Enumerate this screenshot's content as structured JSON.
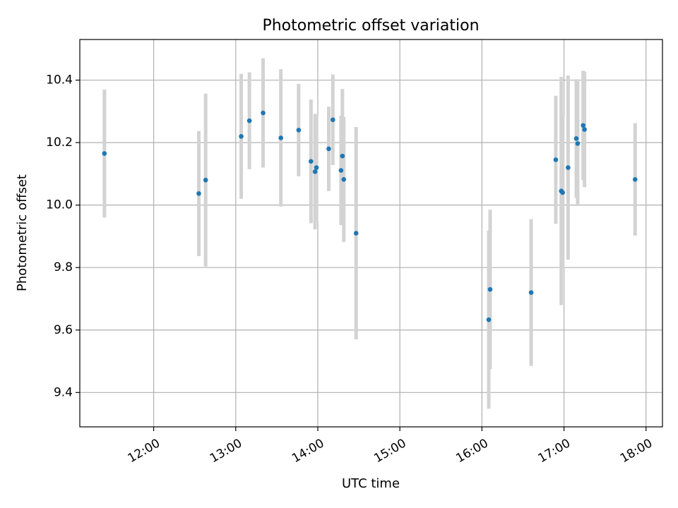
{
  "chart_data": {
    "type": "scatter",
    "title": "Photometric offset variation",
    "xlabel": "UTC time",
    "ylabel": "Photometric offset",
    "x_tick_labels": [
      "12:00",
      "13:00",
      "14:00",
      "15:00",
      "16:00",
      "17:00",
      "18:00"
    ],
    "x_tick_values": [
      "12:00",
      "13:00",
      "14:00",
      "15:00",
      "16:00",
      "17:00",
      "18:00"
    ],
    "xlim": [
      "11:06",
      "18:12"
    ],
    "y_tick_labels": [
      "9.4",
      "9.6",
      "9.8",
      "10.0",
      "10.2",
      "10.4"
    ],
    "y_tick_values": [
      9.4,
      9.6,
      9.8,
      10.0,
      10.2,
      10.4
    ],
    "ylim": [
      9.29,
      10.53
    ],
    "grid": true,
    "point_color": "#1f77b4",
    "errorbar_color": "#d3d3d3",
    "series": [
      {
        "x": [
          "11:24",
          "12:33",
          "12:38",
          "13:04",
          "13:10",
          "13:20",
          "13:33",
          "13:46",
          "13:55",
          "13:58",
          "13:59",
          "14:08",
          "14:11",
          "14:17",
          "14:18",
          "14:19",
          "14:28",
          "16:05",
          "16:06",
          "16:36",
          "16:54",
          "16:58",
          "16:59",
          "17:03",
          "17:09",
          "17:10",
          "17:14",
          "17:15",
          "17:52"
        ],
        "y": [
          10.165,
          10.037,
          10.08,
          10.22,
          10.27,
          10.295,
          10.215,
          10.24,
          10.14,
          10.107,
          10.12,
          10.18,
          10.273,
          10.111,
          10.157,
          10.082,
          9.91,
          9.633,
          9.73,
          9.72,
          10.145,
          10.045,
          10.04,
          10.12,
          10.213,
          10.197,
          10.255,
          10.242,
          10.082
        ],
        "err": [
          0.205,
          0.2,
          0.277,
          0.2,
          0.155,
          0.175,
          0.22,
          0.148,
          0.198,
          0.185,
          0.17,
          0.135,
          0.145,
          0.175,
          0.215,
          0.2,
          0.34,
          0.285,
          0.255,
          0.235,
          0.205,
          0.365,
          0.245,
          0.295,
          0.19,
          0.2,
          0.175,
          0.185,
          0.18
        ]
      }
    ]
  }
}
